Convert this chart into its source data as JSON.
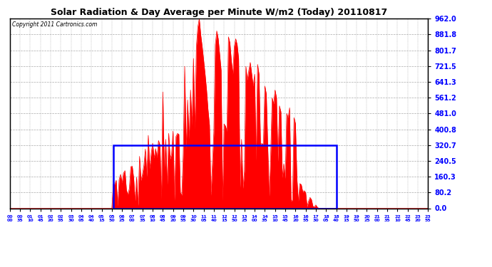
{
  "title": "Solar Radiation & Day Average per Minute W/m2 (Today) 20110817",
  "copyright": "Copyright 2011 Cartronics.com",
  "y_ticks": [
    0.0,
    80.2,
    160.3,
    240.5,
    320.7,
    400.8,
    481.0,
    561.2,
    641.3,
    721.5,
    801.7,
    881.8,
    962.0
  ],
  "y_max": 962.0,
  "bg_color": "#ffffff",
  "bar_color": "#ff0000",
  "avg_box_color": "#0000ff",
  "avg_value": 320.7,
  "n_points": 288,
  "sunrise_idx": 71,
  "sunset_idx": 224,
  "tick_step": 5
}
